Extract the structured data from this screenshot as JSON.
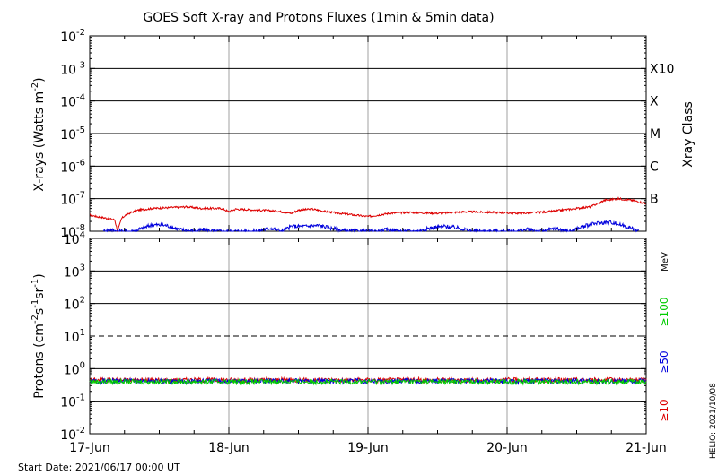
{
  "title": "GOES Soft X-ray and Protons Fluxes   (1min & 5min data)",
  "start_date": "Start Date: 2021/06/17 00:00 UT",
  "credit": "HELIO: 2021/10/08",
  "colors": {
    "red": "#dd0000",
    "blue": "#0000dd",
    "green": "#00cc00",
    "grid": "#a0a0a0"
  },
  "chart_data": [
    {
      "type": "line",
      "name": "xray",
      "ylabel_base": "X-rays (Watts m",
      "ylabel_sup": "-2",
      "ylabel_end": ")",
      "y_scale": "log",
      "ylim_exp": [
        -8,
        -2
      ],
      "ytick_base": "10",
      "ytick_exps": [
        "-8",
        "-7",
        "-6",
        "-5",
        "-4",
        "-3",
        "-2"
      ],
      "right_axis_label": "Xray Class",
      "class_labels": [
        {
          "label": "B",
          "exp": -7
        },
        {
          "label": "C",
          "exp": -6
        },
        {
          "label": "M",
          "exp": -5
        },
        {
          "label": "X",
          "exp": -4
        },
        {
          "label": "X10",
          "exp": -3
        }
      ],
      "x_dates": [
        "17-Jun",
        "18-Jun",
        "19-Jun",
        "20-Jun",
        "21-Jun"
      ],
      "xlim_days": [
        0,
        4
      ],
      "series": [
        {
          "color": "#dd0000",
          "x": [
            0,
            0.05,
            0.12,
            0.18,
            0.2,
            0.23,
            0.26,
            0.3,
            0.35,
            0.45,
            0.55,
            0.7,
            0.8,
            0.95,
            1.0,
            1.05,
            1.2,
            1.35,
            1.45,
            1.5,
            1.6,
            1.7,
            1.8,
            1.9,
            2.0,
            2.05,
            2.15,
            2.3,
            2.5,
            2.7,
            2.9,
            3.1,
            3.3,
            3.5,
            3.6,
            3.7,
            3.8,
            3.9,
            3.95,
            4.0
          ],
          "y_exp": [
            -7.5,
            -7.55,
            -7.6,
            -7.65,
            -8.0,
            -7.6,
            -7.5,
            -7.42,
            -7.35,
            -7.3,
            -7.28,
            -7.25,
            -7.3,
            -7.3,
            -7.4,
            -7.32,
            -7.35,
            -7.38,
            -7.45,
            -7.35,
            -7.32,
            -7.4,
            -7.45,
            -7.5,
            -7.55,
            -7.52,
            -7.45,
            -7.42,
            -7.45,
            -7.4,
            -7.42,
            -7.45,
            -7.4,
            -7.3,
            -7.25,
            -7.05,
            -7.0,
            -7.05,
            -7.1,
            -7.15
          ]
        },
        {
          "color": "#0000dd",
          "x": [
            0.1,
            0.15,
            0.2,
            0.3,
            0.35,
            0.45,
            0.55,
            0.65,
            0.75,
            0.82,
            0.9,
            1.0,
            1.1,
            1.2,
            1.3,
            1.38,
            1.45,
            1.55,
            1.65,
            1.75,
            1.85,
            1.95,
            2.05,
            2.15,
            2.25,
            2.35,
            2.45,
            2.55,
            2.65,
            2.75,
            2.85,
            2.95,
            3.05,
            3.15,
            3.25,
            3.35,
            3.45,
            3.55,
            3.65,
            3.75,
            3.85,
            3.95
          ],
          "y_exp": [
            -8.0,
            -7.95,
            -8.0,
            -8.0,
            -7.95,
            -7.8,
            -7.82,
            -7.95,
            -8.0,
            -7.95,
            -8.0,
            -8.0,
            -8.0,
            -8.0,
            -7.9,
            -8.0,
            -7.85,
            -7.85,
            -7.82,
            -7.92,
            -8.0,
            -8.0,
            -8.0,
            -7.95,
            -8.0,
            -8.0,
            -7.9,
            -7.85,
            -7.9,
            -8.0,
            -8.0,
            -8.0,
            -8.0,
            -7.95,
            -8.0,
            -7.92,
            -8.0,
            -7.85,
            -7.75,
            -7.72,
            -7.85,
            -8.0
          ]
        }
      ]
    },
    {
      "type": "line",
      "name": "protons",
      "ylabel_base": "Protons (cm",
      "ylabel_sup1": "-2",
      "ylabel_mid1": "s",
      "ylabel_sup2": "-1",
      "ylabel_mid2": "sr",
      "ylabel_sup3": "-1",
      "ylabel_end": ")",
      "y_scale": "log",
      "ylim_exp": [
        -2,
        4
      ],
      "ytick_base": "10",
      "ytick_exps": [
        "-2",
        "-1",
        "0",
        "1",
        "2",
        "3",
        "4"
      ],
      "threshold_exp": 1,
      "mev_label": "MeV",
      "energy_labels": [
        {
          "label": "≥100",
          "color": "#00cc00"
        },
        {
          "label": "≥50",
          "color": "#0000dd"
        },
        {
          "label": "≥10",
          "color": "#dd0000"
        }
      ],
      "x_dates": [
        "17-Jun",
        "18-Jun",
        "19-Jun",
        "20-Jun",
        "21-Jun"
      ],
      "xlim_days": [
        0,
        4
      ],
      "series": [
        {
          "color": "#dd0000",
          "level": 0.45
        },
        {
          "color": "#0000dd",
          "level": 0.42
        },
        {
          "color": "#00cc00",
          "level": 0.4
        }
      ]
    }
  ]
}
